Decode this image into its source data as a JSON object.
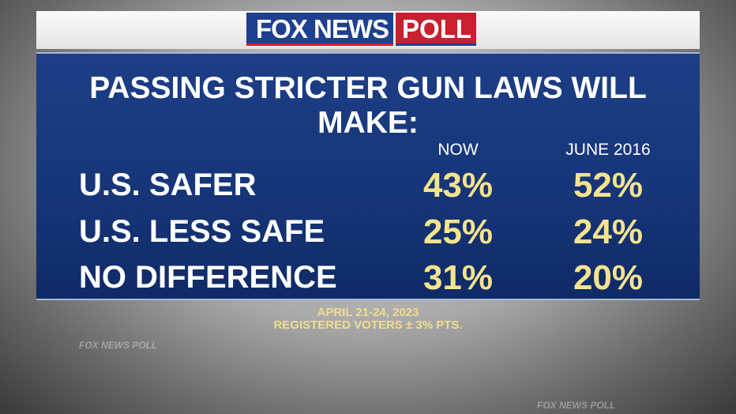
{
  "logo": {
    "brand": "FOX NEWS",
    "tag": "POLL"
  },
  "chart_data": {
    "type": "table",
    "title": "PASSING STRICTER GUN LAWS WILL MAKE:",
    "columns": [
      "NOW",
      "JUNE 2016"
    ],
    "rows": [
      {
        "label": "U.S. SAFER",
        "values": [
          "43%",
          "52%"
        ]
      },
      {
        "label": "U.S. LESS SAFE",
        "values": [
          "25%",
          "24%"
        ]
      },
      {
        "label": "NO DIFFERENCE",
        "values": [
          "31%",
          "20%"
        ]
      }
    ]
  },
  "footer": {
    "dates": "APRIL 21-24, 2023",
    "sample": "REGISTERED VOTERS ± 3% PTS."
  },
  "watermark": "FOX NEWS POLL"
}
